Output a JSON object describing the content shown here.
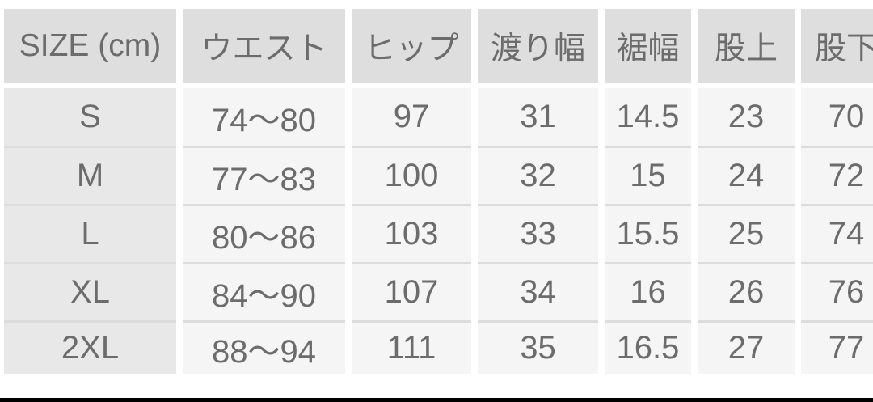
{
  "table": {
    "headers": [
      "SIZE (cm)",
      "ウエスト",
      "ヒップ",
      "渡り幅",
      "裾幅",
      "股上",
      "股下"
    ],
    "rows": [
      {
        "size": "S",
        "cells": [
          "74〜80",
          "97",
          "31",
          "14.5",
          "23",
          "70"
        ]
      },
      {
        "size": "M",
        "cells": [
          "77〜83",
          "100",
          "32",
          "15",
          "24",
          "72"
        ]
      },
      {
        "size": "L",
        "cells": [
          "80〜86",
          "103",
          "33",
          "15.5",
          "25",
          "74"
        ]
      },
      {
        "size": "XL",
        "cells": [
          "84〜90",
          "107",
          "34",
          "16",
          "26",
          "76"
        ]
      },
      {
        "size": "2XL",
        "cells": [
          "88〜94",
          "111",
          "35",
          "16.5",
          "27",
          "77"
        ]
      }
    ]
  },
  "colors": {
    "header_bg": "#dedede",
    "row_label_bg": "#e8e8e8",
    "cell_bg": "#f5f5f5",
    "text": "#6c6c6c",
    "separator": "#dcdcdc",
    "bottom_bar": "#000000",
    "page_bg": "#ffffff"
  }
}
